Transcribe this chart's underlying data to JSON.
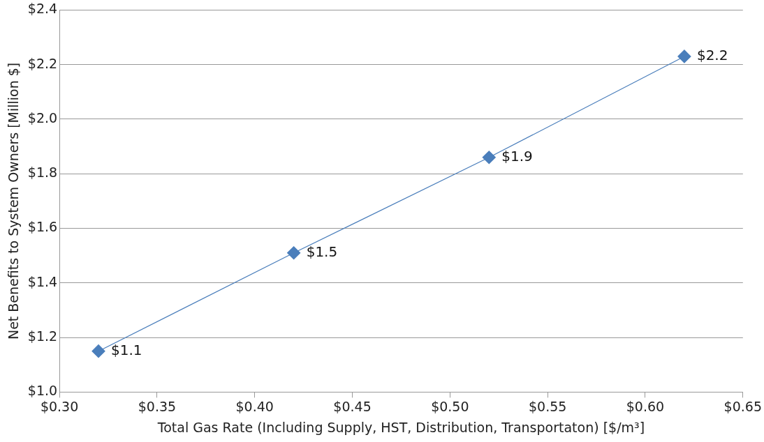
{
  "chart_data": {
    "type": "line",
    "xlabel": "Total Gas Rate (Including Supply, HST, Distribution, Transportaton) [$/m³]",
    "ylabel": "Net Benefits to System Owners [Million $]",
    "x": [
      0.32,
      0.42,
      0.52,
      0.62
    ],
    "series": [
      {
        "color": "#4a7ebb",
        "values": [
          1.15,
          1.51,
          1.86,
          2.23
        ],
        "value_labels": [
          "$1.1",
          "$1.5",
          "$1.9",
          "$2.2"
        ]
      }
    ],
    "xlim": [
      0.3,
      0.65
    ],
    "xticks": [
      {
        "value": 0.3,
        "label": "$0.30"
      },
      {
        "value": 0.35,
        "label": "$0.35"
      },
      {
        "value": 0.4,
        "label": "$0.40"
      },
      {
        "value": 0.45,
        "label": "$0.45"
      },
      {
        "value": 0.5,
        "label": "$0.50"
      },
      {
        "value": 0.55,
        "label": "$0.55"
      },
      {
        "value": 0.6,
        "label": "$0.60"
      },
      {
        "value": 0.65,
        "label": "$0.65"
      }
    ],
    "ylim": [
      1.0,
      2.4
    ],
    "yticks": [
      {
        "value": 1.0,
        "label": "$1.0"
      },
      {
        "value": 1.2,
        "label": "$1.2"
      },
      {
        "value": 1.4,
        "label": "$1.4"
      },
      {
        "value": 1.6,
        "label": "$1.6"
      },
      {
        "value": 1.8,
        "label": "$1.8"
      },
      {
        "value": 2.0,
        "label": "$2.0"
      },
      {
        "value": 2.2,
        "label": "$2.2"
      },
      {
        "value": 2.4,
        "label": "$2.4"
      }
    ],
    "grid": "y",
    "legend": false,
    "marker": "diamond",
    "line_style": "solid"
  }
}
